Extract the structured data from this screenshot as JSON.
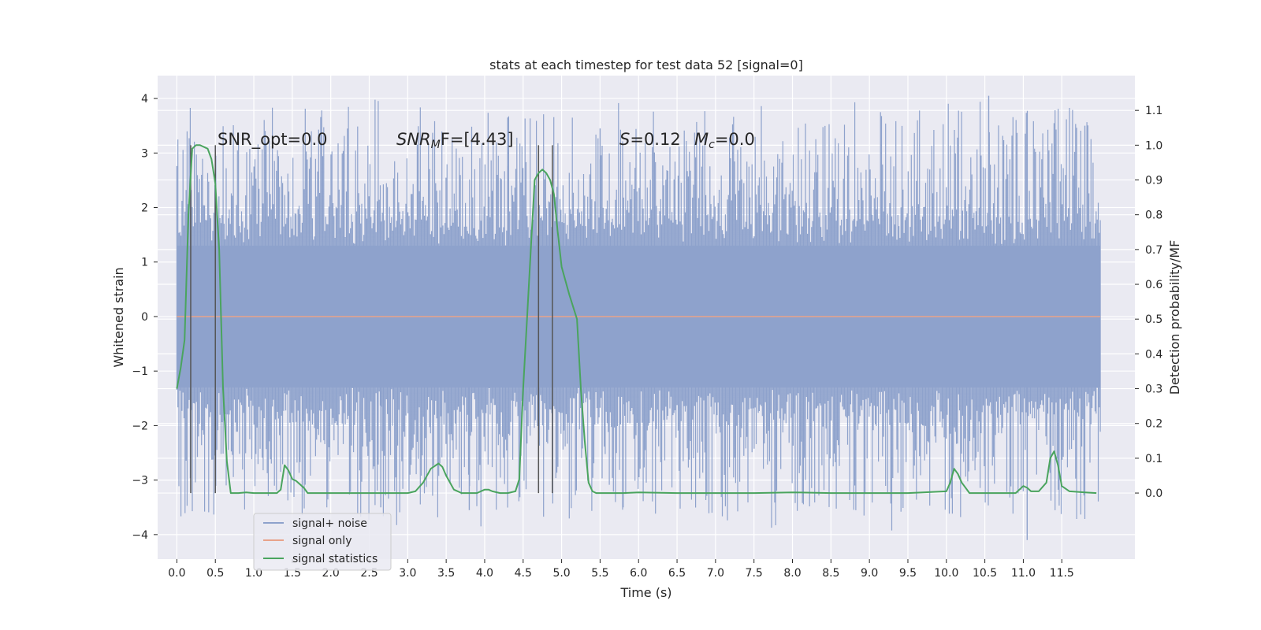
{
  "chart_data": {
    "type": "line",
    "title": "stats at each timestep for test data 52 [signal=0]",
    "xlabel": "Time (s)",
    "ylabel": "Whitened strain",
    "y2label": "Detection probability/MF",
    "xlim": [
      -0.25,
      12.45
    ],
    "ylim": [
      -4.45,
      4.42
    ],
    "y2lim": [
      -0.19,
      1.2
    ],
    "x_ticks": [
      "0.0",
      "0.5",
      "1.0",
      "1.5",
      "2.0",
      "2.5",
      "3.0",
      "3.5",
      "4.0",
      "4.5",
      "5.0",
      "5.5",
      "6.0",
      "6.5",
      "7.0",
      "7.5",
      "8.0",
      "8.5",
      "9.0",
      "9.5",
      "10.0",
      "10.5",
      "11.0",
      "11.5"
    ],
    "y_ticks": [
      "4",
      "3",
      "2",
      "1",
      "0",
      "−1",
      "−2",
      "−3",
      "−4"
    ],
    "y2_ticks": [
      "1.1",
      "1.0",
      "0.9",
      "0.8",
      "0.7",
      "0.6",
      "0.5",
      "0.4",
      "0.3",
      "0.2",
      "0.1",
      "0.0"
    ],
    "grid": true,
    "legend_position": "lower-left",
    "annotations": {
      "snr_opt": "SNR_opt=0.0",
      "snr_mf_main": "SNR",
      "snr_mf_sub": "M",
      "snr_mf_rest": "F=[4.43]",
      "s_label": "S",
      "s_rest": "=0.12",
      "mc_main": "M",
      "mc_sub": "c",
      "mc_rest": "=0.0"
    },
    "series": [
      {
        "name": "signal+ noise",
        "color": "#8ea2cc",
        "envelope": {
          "x_start": 0.0,
          "x_end": 12.0,
          "core_low": -1.3,
          "core_high": 1.3,
          "max_peak": 4.05,
          "min_trough": -4.05
        }
      },
      {
        "name": "signal only",
        "color": "#e8a38a",
        "x": [
          0.0,
          12.0
        ],
        "y": [
          0.0,
          0.0
        ]
      },
      {
        "name": "signal statistics",
        "color": "#4aa45e",
        "x": [
          0.0,
          0.05,
          0.1,
          0.15,
          0.2,
          0.25,
          0.3,
          0.4,
          0.45,
          0.5,
          0.55,
          0.6,
          0.65,
          0.7,
          0.75,
          0.8,
          0.9,
          1.0,
          1.1,
          1.2,
          1.3,
          1.35,
          1.4,
          1.45,
          1.5,
          1.55,
          1.6,
          1.65,
          1.7,
          1.8,
          1.9,
          2.0,
          2.5,
          3.0,
          3.1,
          3.2,
          3.3,
          3.4,
          3.45,
          3.5,
          3.6,
          3.7,
          3.8,
          3.9,
          4.0,
          4.05,
          4.1,
          4.2,
          4.3,
          4.4,
          4.45,
          4.5,
          4.55,
          4.6,
          4.65,
          4.7,
          4.75,
          4.8,
          4.85,
          4.9,
          4.95,
          5.0,
          5.1,
          5.2,
          5.25,
          5.3,
          5.35,
          5.4,
          5.45,
          5.5,
          5.6,
          5.8,
          6.0,
          6.5,
          7.0,
          7.5,
          8.0,
          8.5,
          8.6,
          9.0,
          9.5,
          10.0,
          10.05,
          10.1,
          10.15,
          10.2,
          10.3,
          10.5,
          10.9,
          10.95,
          11.0,
          11.05,
          11.1,
          11.2,
          11.3,
          11.35,
          11.4,
          11.45,
          11.5,
          11.6,
          11.8,
          11.95
        ],
        "y": [
          0.3,
          0.36,
          0.44,
          0.8,
          0.99,
          1.0,
          1.0,
          0.99,
          0.96,
          0.89,
          0.7,
          0.3,
          0.09,
          0.0,
          0.0,
          0.0,
          0.002,
          0.0,
          0.0,
          0.0,
          0.0,
          0.01,
          0.08,
          0.065,
          0.04,
          0.035,
          0.025,
          0.015,
          0.0,
          0.0,
          0.0,
          0.0,
          0.0,
          0.0,
          0.005,
          0.03,
          0.07,
          0.085,
          0.075,
          0.05,
          0.01,
          0.0,
          0.0,
          0.0,
          0.01,
          0.01,
          0.005,
          0.0,
          0.0,
          0.005,
          0.04,
          0.3,
          0.5,
          0.7,
          0.9,
          0.92,
          0.93,
          0.92,
          0.9,
          0.86,
          0.75,
          0.65,
          0.57,
          0.5,
          0.3,
          0.15,
          0.03,
          0.005,
          0.0,
          0.0,
          0.0,
          0.0,
          0.002,
          0.0,
          0.0,
          0.0,
          0.002,
          0.0,
          0.0,
          0.0,
          0.0,
          0.005,
          0.03,
          0.07,
          0.055,
          0.03,
          0.0,
          0.0,
          0.0,
          0.01,
          0.02,
          0.015,
          0.005,
          0.005,
          0.03,
          0.1,
          0.12,
          0.08,
          0.02,
          0.005,
          0.002,
          0.0
        ]
      }
    ],
    "vertical_lines_x": [
      0.18,
      0.5,
      4.7,
      4.88
    ]
  }
}
